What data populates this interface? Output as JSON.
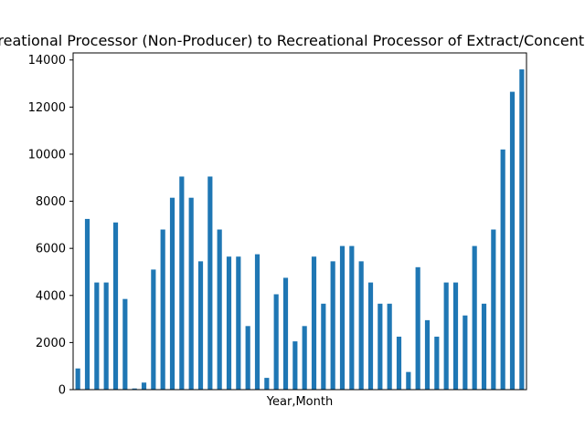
{
  "chart_data": {
    "type": "bar",
    "title": "Recreational Processor (Non-Producer) to Recreational Processor of Extract/Concentrate",
    "xlabel": "Year,Month",
    "ylabel": "",
    "ylim": [
      0,
      14300
    ],
    "yticks": [
      0,
      2000,
      4000,
      6000,
      8000,
      10000,
      12000,
      14000
    ],
    "ytick_labels": [
      "0",
      "2000",
      "4000",
      "6000",
      "8000",
      "10000",
      "12000",
      "14000"
    ],
    "bar_color": "#1f77b4",
    "grid": false,
    "legend": "none",
    "values": [
      900,
      7250,
      4550,
      4550,
      7100,
      3850,
      50,
      300,
      5100,
      6800,
      8150,
      9050,
      8150,
      5450,
      9050,
      6800,
      5650,
      5650,
      2700,
      5750,
      500,
      4050,
      4750,
      2050,
      2700,
      5650,
      3650,
      5450,
      6100,
      6100,
      5450,
      4550,
      3650,
      3650,
      2250,
      750,
      5200,
      2950,
      2250,
      4550,
      4550,
      3150,
      6100,
      3650,
      6800,
      10200,
      12650,
      13600
    ]
  }
}
